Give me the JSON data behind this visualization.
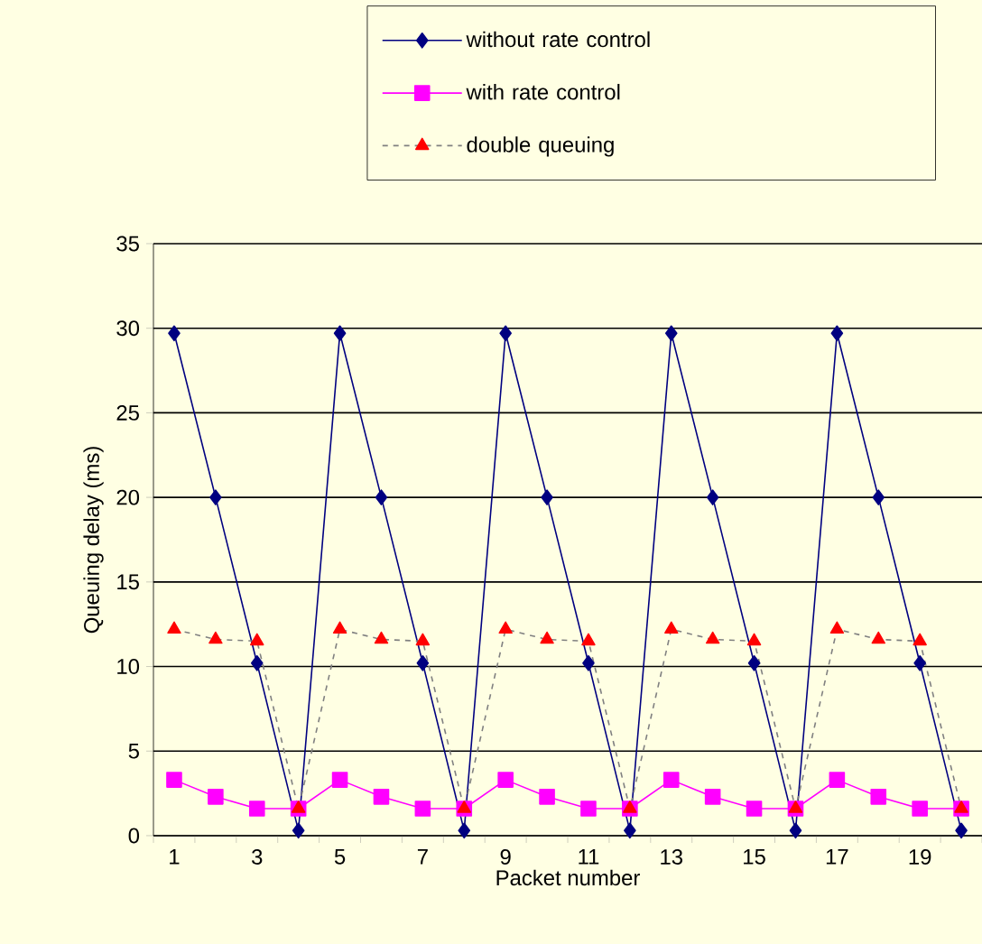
{
  "chart_data": {
    "type": "line",
    "xlabel": "Packet number",
    "ylabel": "Queuing delay (ms)",
    "categories": [
      "1",
      null,
      "3",
      null,
      "5",
      null,
      "7",
      null,
      "9",
      null,
      "11",
      null,
      "13",
      null,
      "15",
      null,
      "17",
      null,
      "19",
      null
    ],
    "series": [
      {
        "name": "without rate control",
        "color": "#000080",
        "marker": "diamond",
        "line_style": "solid",
        "values": [
          29.7,
          20,
          10.2,
          0.3,
          29.7,
          20,
          10.2,
          0.3,
          29.7,
          20,
          10.2,
          0.3,
          29.7,
          20,
          10.2,
          0.3,
          29.7,
          20,
          10.2,
          0.3
        ]
      },
      {
        "name": "with rate control",
        "color": "#ff00ff",
        "marker": "square",
        "line_style": "solid",
        "values": [
          3.3,
          2.3,
          1.6,
          1.6,
          3.3,
          2.3,
          1.6,
          1.6,
          3.3,
          2.3,
          1.6,
          1.6,
          3.3,
          2.3,
          1.6,
          1.6,
          3.3,
          2.3,
          1.6,
          1.6
        ]
      },
      {
        "name": "double queuing",
        "color": "#ff0000",
        "marker": "triangle",
        "line_style": "dashed",
        "values": [
          12.2,
          11.6,
          11.5,
          1.6,
          12.2,
          11.6,
          11.5,
          1.6,
          12.2,
          11.6,
          11.5,
          1.6,
          12.2,
          11.6,
          11.5,
          1.6,
          12.2,
          11.6,
          11.5,
          1.6
        ]
      }
    ],
    "ylim": [
      0,
      35
    ],
    "yticks": [
      0,
      5,
      10,
      15,
      20,
      25,
      30,
      35
    ],
    "grid": "y",
    "legend": "top"
  }
}
